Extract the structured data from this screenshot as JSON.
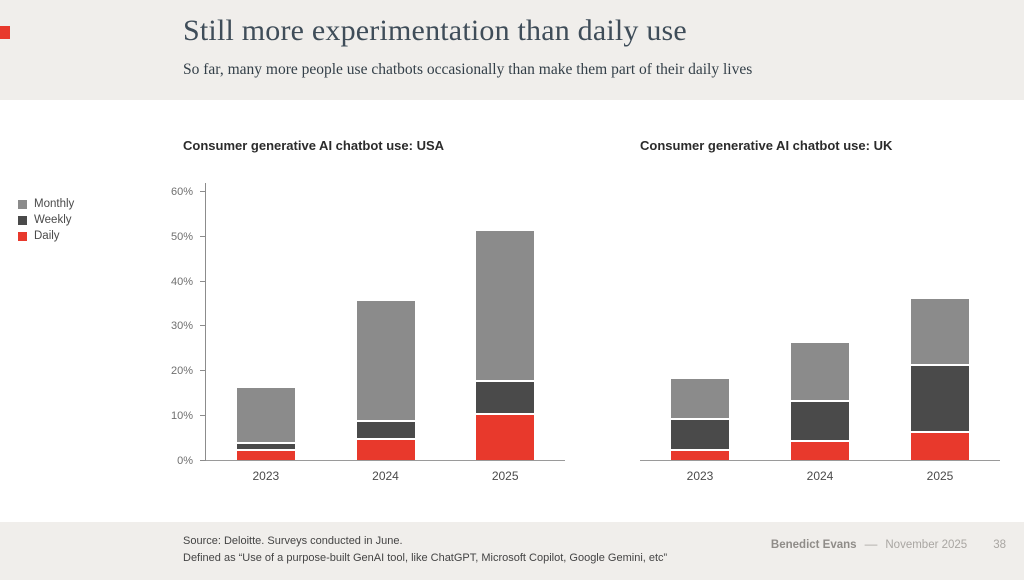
{
  "slide": {
    "title": "Still more experimentation than daily use",
    "subtitle": "So far, many more people use chatbots occasionally than make them part of their daily lives",
    "footer": {
      "source_line1": "Source: Deloitte. Surveys conducted in June.",
      "source_line2": "Defined as “Use of a purpose-built GenAI tool, like ChatGPT, Microsoft Copilot, Google Gemini, etc”",
      "author": "Benedict Evans",
      "separator": "––",
      "date": "November 2025",
      "page": "38"
    }
  },
  "colors": {
    "monthly": "#8b8b8b",
    "weekly": "#4a4a4a",
    "daily": "#e8392c",
    "band_background": "#f0eeeb",
    "title_text": "#3f4d59"
  },
  "legend": [
    {
      "label": "Monthly",
      "color": "#8b8b8b"
    },
    {
      "label": "Weekly",
      "color": "#4a4a4a"
    },
    {
      "label": "Daily",
      "color": "#e8392c"
    }
  ],
  "chart_data": [
    {
      "type": "bar",
      "stacked": true,
      "title": "Consumer generative AI chatbot use: USA",
      "categories": [
        "2023",
        "2024",
        "2025"
      ],
      "series": [
        {
          "name": "Daily",
          "color": "#e8392c",
          "values": [
            2,
            4.5,
            10
          ]
        },
        {
          "name": "Weekly",
          "color": "#4a4a4a",
          "values": [
            1.5,
            4,
            7.5
          ]
        },
        {
          "name": "Monthly",
          "color": "#8b8b8b",
          "values": [
            12.5,
            27,
            33.5
          ]
        }
      ],
      "totals": [
        16,
        35.5,
        51
      ],
      "ylabel": "",
      "ylim": [
        0,
        62
      ],
      "yticks": [
        0,
        10,
        20,
        30,
        40,
        50,
        60
      ],
      "ytick_suffix": "%",
      "show_y_axis": true,
      "legend_position": "left-of-charts",
      "grid": false
    },
    {
      "type": "bar",
      "stacked": true,
      "title": "Consumer generative AI chatbot use: UK",
      "categories": [
        "2023",
        "2024",
        "2025"
      ],
      "series": [
        {
          "name": "Daily",
          "color": "#e8392c",
          "values": [
            2,
            4,
            6
          ]
        },
        {
          "name": "Weekly",
          "color": "#4a4a4a",
          "values": [
            7,
            9,
            15
          ]
        },
        {
          "name": "Monthly",
          "color": "#8b8b8b",
          "values": [
            9,
            13,
            15
          ]
        }
      ],
      "totals": [
        18,
        26,
        36
      ],
      "ylabel": "",
      "ylim": [
        0,
        62
      ],
      "yticks": [
        0,
        10,
        20,
        30,
        40,
        50,
        60
      ],
      "ytick_suffix": "%",
      "show_y_axis": false,
      "legend_position": "left-of-charts",
      "grid": false
    }
  ]
}
